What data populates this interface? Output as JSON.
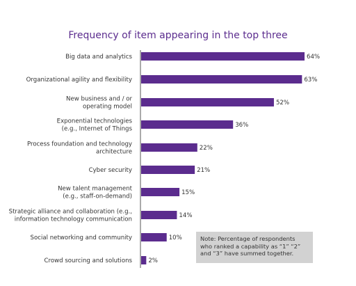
{
  "chart_data": {
    "type": "bar",
    "orientation": "horizontal",
    "title": "Frequency of item appearing in the top three",
    "categories": [
      [
        "Big data and analytics"
      ],
      [
        "Organizational agility and flexibility"
      ],
      [
        "New business and / or",
        "operating model"
      ],
      [
        "Exponential technologies",
        "(e.g., Internet of Things"
      ],
      [
        "Process foundation and technology",
        "architecture"
      ],
      [
        "Cyber security"
      ],
      [
        "New talent management",
        "(e.g., staff-on-demand)"
      ],
      [
        "Strategic alliance and collaboration (e.g.,",
        "information technology communication"
      ],
      [
        "Social networking and community"
      ],
      [
        "Crowd sourcing and solutions"
      ]
    ],
    "values": [
      64,
      63,
      52,
      36,
      22,
      21,
      15,
      14,
      10,
      2
    ],
    "value_labels": [
      "64%",
      "63%",
      "52%",
      "36%",
      "22%",
      "21%",
      "15%",
      "14%",
      "10%",
      "2%"
    ],
    "bar_color": "#5b2c8e",
    "xlim": [
      0,
      64
    ],
    "grid": false,
    "note": "Note: Percentage of respondents who ranked a capability as “1” “2” and “3” have summed together."
  }
}
